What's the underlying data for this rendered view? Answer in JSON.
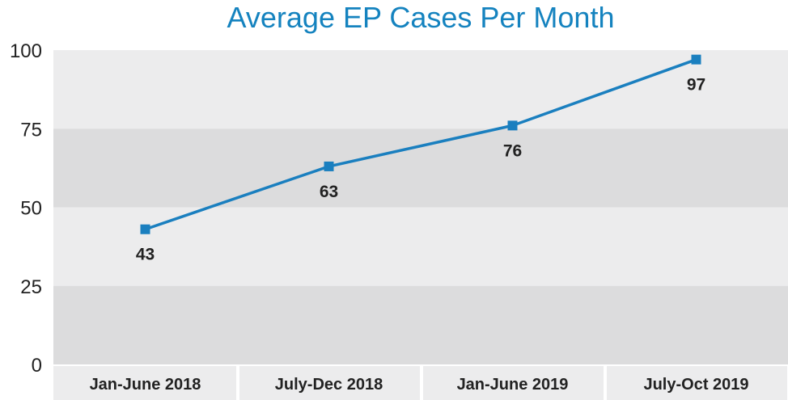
{
  "chart_data": {
    "type": "line",
    "title": "Average EP Cases Per Month",
    "categories": [
      "Jan-June 2018",
      "July-Dec 2018",
      "Jan-June 2019",
      "July-Oct 2019"
    ],
    "series": [
      {
        "values": [
          43,
          63,
          76,
          97
        ]
      }
    ],
    "data_labels": [
      "43",
      "63",
      "76",
      "97"
    ],
    "y_ticks": [
      "0",
      "25",
      "50",
      "75",
      "100"
    ],
    "ylim": [
      0,
      100
    ],
    "xlabel": "",
    "ylabel": "",
    "grid": false,
    "legend": "none",
    "colors": {
      "line": "#1a7fbf",
      "marker": "#1a7fbf",
      "title": "#1583bf",
      "band_light": "#ececed",
      "band_dark": "#dcdcdd",
      "text": "#222222"
    }
  }
}
